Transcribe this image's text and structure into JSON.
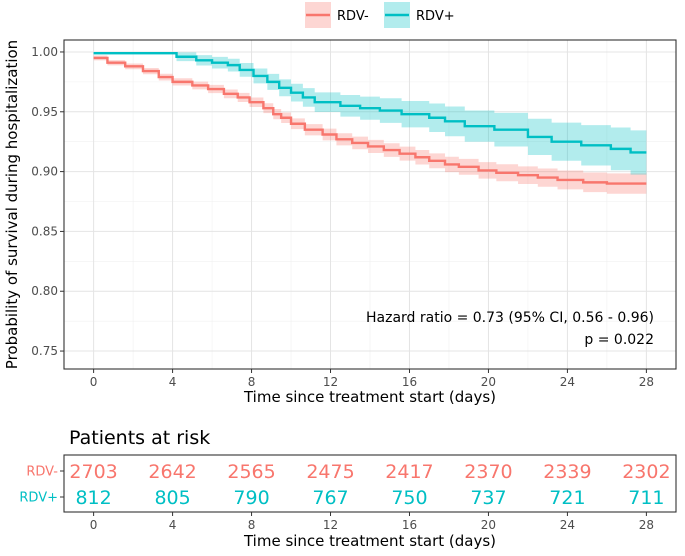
{
  "chart_data": {
    "type": "line",
    "subtype": "kaplan-meier",
    "legend": {
      "position": "top",
      "entries": [
        "RDV-",
        "RDV+"
      ]
    },
    "xlabel": "Time since treatment start (days)",
    "ylabel": "Probability of survival during hospitalization",
    "xlim": [
      -1.5,
      29.5
    ],
    "ylim": [
      0.735,
      1.01
    ],
    "xticks": [
      "0",
      "4",
      "8",
      "12",
      "16",
      "20",
      "24",
      "28"
    ],
    "yticks": [
      "0.75",
      "0.80",
      "0.85",
      "0.90",
      "0.95",
      "1.00"
    ],
    "colors": {
      "RDV-": "#F8766D",
      "RDV+": "#00BFC4",
      "RDV-_band": "#F8766D",
      "RDV+_band": "#00BFC4"
    },
    "series": [
      {
        "name": "RDV-",
        "color": "#F8766D",
        "steps": [
          [
            0,
            0.995
          ],
          [
            0.7,
            0.991
          ],
          [
            1.6,
            0.988
          ],
          [
            2.5,
            0.984
          ],
          [
            3.3,
            0.979
          ],
          [
            4.0,
            0.975
          ],
          [
            5.0,
            0.972
          ],
          [
            5.8,
            0.969
          ],
          [
            6.6,
            0.965
          ],
          [
            7.3,
            0.962
          ],
          [
            7.9,
            0.958
          ],
          [
            8.6,
            0.953
          ],
          [
            9.1,
            0.948
          ],
          [
            9.5,
            0.945
          ],
          [
            10.0,
            0.94
          ],
          [
            10.7,
            0.935
          ],
          [
            11.6,
            0.931
          ],
          [
            12.3,
            0.927
          ],
          [
            13.1,
            0.924
          ],
          [
            13.9,
            0.921
          ],
          [
            14.7,
            0.918
          ],
          [
            15.5,
            0.915
          ],
          [
            16.3,
            0.912
          ],
          [
            17.0,
            0.909
          ],
          [
            17.8,
            0.906
          ],
          [
            18.5,
            0.904
          ],
          [
            19.5,
            0.901
          ],
          [
            20.4,
            0.899
          ],
          [
            21.5,
            0.897
          ],
          [
            22.5,
            0.895
          ],
          [
            23.5,
            0.893
          ],
          [
            24.8,
            0.891
          ],
          [
            26.0,
            0.89
          ],
          [
            28.0,
            0.89
          ]
        ],
        "ci_halfwidth": [
          0.002,
          0.009
        ]
      },
      {
        "name": "RDV+",
        "color": "#00BFC4",
        "steps": [
          [
            0,
            0.999
          ],
          [
            4.2,
            0.996
          ],
          [
            5.2,
            0.993
          ],
          [
            6.0,
            0.991
          ],
          [
            6.8,
            0.989
          ],
          [
            7.4,
            0.985
          ],
          [
            8.1,
            0.98
          ],
          [
            8.8,
            0.975
          ],
          [
            9.4,
            0.97
          ],
          [
            10.0,
            0.966
          ],
          [
            10.6,
            0.962
          ],
          [
            11.2,
            0.958
          ],
          [
            12.5,
            0.955
          ],
          [
            13.5,
            0.953
          ],
          [
            14.5,
            0.951
          ],
          [
            15.6,
            0.948
          ],
          [
            17.0,
            0.945
          ],
          [
            17.8,
            0.942
          ],
          [
            18.8,
            0.938
          ],
          [
            20.3,
            0.935
          ],
          [
            22.0,
            0.929
          ],
          [
            23.2,
            0.925
          ],
          [
            24.7,
            0.922
          ],
          [
            26.2,
            0.919
          ],
          [
            27.2,
            0.916
          ],
          [
            28.0,
            0.916
          ]
        ],
        "ci_halfwidth": [
          0.001,
          0.019
        ]
      }
    ],
    "annotations": [
      "Hazard ratio = 0.73 (95% CI, 0.56 - 0.96)",
      "p = 0.022"
    ],
    "risk_table": {
      "title": "Patients at risk",
      "xlabel": "Time since treatment start (days)",
      "times": [
        0,
        4,
        8,
        12,
        16,
        20,
        24,
        28
      ],
      "rows": [
        {
          "label": "RDV-",
          "color": "#F8766D",
          "values": [
            "2703",
            "2642",
            "2565",
            "2475",
            "2417",
            "2370",
            "2339",
            "2302"
          ]
        },
        {
          "label": "RDV+",
          "color": "#00BFC4",
          "values": [
            "812",
            "805",
            "790",
            "767",
            "750",
            "737",
            "721",
            "711"
          ]
        }
      ]
    }
  }
}
